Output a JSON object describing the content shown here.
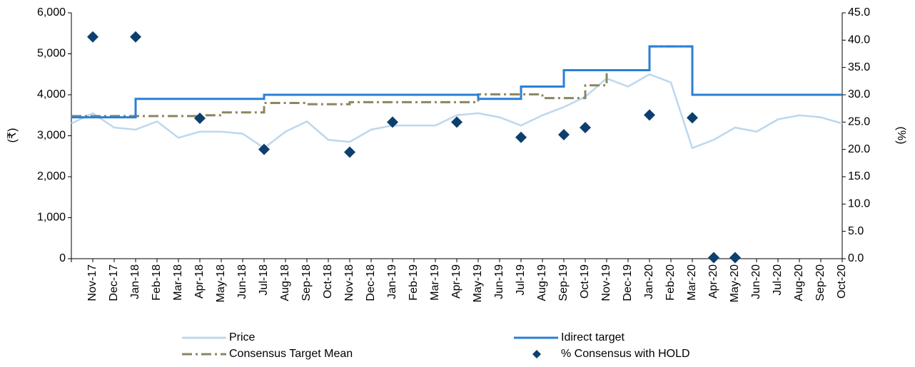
{
  "chart_data": {
    "type": "line",
    "categories": [
      null,
      "Nov-17",
      "Dec-17",
      "Jan-18",
      "Feb-18",
      "Mar-18",
      "Apr-18",
      "May-18",
      "Jun-18",
      "Jul-18",
      "Aug-18",
      "Sep-18",
      "Oct-18",
      "Nov-18",
      "Dec-18",
      "Jan-19",
      "Feb-19",
      "Mar-19",
      "Apr-19",
      "May-19",
      "Jun-19",
      "Jul-19",
      "Aug-19",
      "Sep-19",
      "Oct-19",
      "Nov-19",
      "Dec-19",
      "Jan-20",
      "Feb-20",
      "Mar-20",
      "Apr-20",
      "May-20",
      "Jun-20",
      "Jul-20",
      "Aug-20",
      "Sep-20",
      "Oct-20"
    ],
    "y_label": "(₹)",
    "y2_label": "(%)",
    "ylim": [
      0,
      6000
    ],
    "yticks": [
      0,
      {
        "value": 1000,
        "label": "1,000"
      },
      {
        "value": 2000,
        "label": "2,000"
      },
      {
        "value": 3000,
        "label": "3,000"
      },
      {
        "value": 4000,
        "label": "4,000"
      },
      {
        "value": 5000,
        "label": "5,000"
      },
      {
        "value": 6000,
        "label": "6,000"
      }
    ],
    "y2lim": [
      0,
      45
    ],
    "y2ticks": [
      {
        "value": 0,
        "label": "0.0"
      },
      {
        "value": 5,
        "label": "5.0"
      },
      {
        "value": 10,
        "label": "10.0"
      },
      {
        "value": 15,
        "label": "15.0"
      },
      {
        "value": 20,
        "label": "20.0"
      },
      {
        "value": 25,
        "label": "25.0"
      },
      {
        "value": 30,
        "label": "30.0"
      },
      {
        "value": 35,
        "label": "35.0"
      },
      {
        "value": 40,
        "label": "40.0"
      },
      {
        "value": 45,
        "label": "45.0"
      }
    ],
    "series": [
      {
        "name": "Price",
        "color": "#bdd7ee",
        "style": "line",
        "values": [
          3300,
          3550,
          3200,
          3150,
          3350,
          2950,
          3100,
          3100,
          3050,
          2700,
          3100,
          3350,
          2900,
          2850,
          3150,
          3250,
          3250,
          3250,
          3500,
          3550,
          3450,
          3250,
          3500,
          3700,
          3950,
          4400,
          4200,
          4500,
          4300,
          2700,
          2900,
          3200,
          3100,
          3400,
          3500,
          3450,
          3300
        ]
      },
      {
        "name": "Idirect target",
        "color": "#2a7fd4",
        "style": "step",
        "values": [
          3450,
          3450,
          3450,
          3900,
          3900,
          3900,
          3900,
          3900,
          3900,
          4000,
          4000,
          4000,
          4000,
          4000,
          4000,
          4000,
          4000,
          4000,
          4000,
          3900,
          3900,
          4200,
          4200,
          4600,
          4600,
          4600,
          4600,
          5180,
          5180,
          4000,
          4000,
          4000,
          4000,
          4000,
          4000,
          4000,
          4000
        ]
      },
      {
        "name": "Consensus Target Mean",
        "color": "#8b8660",
        "style": "dashstep",
        "values": [
          3480,
          3480,
          3480,
          3480,
          3480,
          3480,
          3500,
          3570,
          3570,
          3800,
          3800,
          3770,
          3770,
          3820,
          3820,
          3820,
          3820,
          3820,
          3820,
          4010,
          4010,
          4010,
          3920,
          3920,
          4230,
          4600,
          4600,
          5180,
          5180,
          4000,
          4000,
          4000,
          4000,
          4000,
          4000,
          4000,
          4000
        ]
      },
      {
        "name": "% Consensus with HOLD",
        "color": "#0d3f6e",
        "style": "diamond",
        "axis": "y2",
        "values": [
          null,
          40.6,
          null,
          40.6,
          null,
          null,
          25.7,
          null,
          null,
          20,
          null,
          null,
          null,
          19.5,
          null,
          25,
          null,
          null,
          25,
          null,
          null,
          22.2,
          null,
          22.7,
          24,
          null,
          null,
          26.3,
          null,
          25.8,
          0.2,
          0.2,
          null,
          null,
          null,
          null,
          null
        ]
      }
    ]
  }
}
